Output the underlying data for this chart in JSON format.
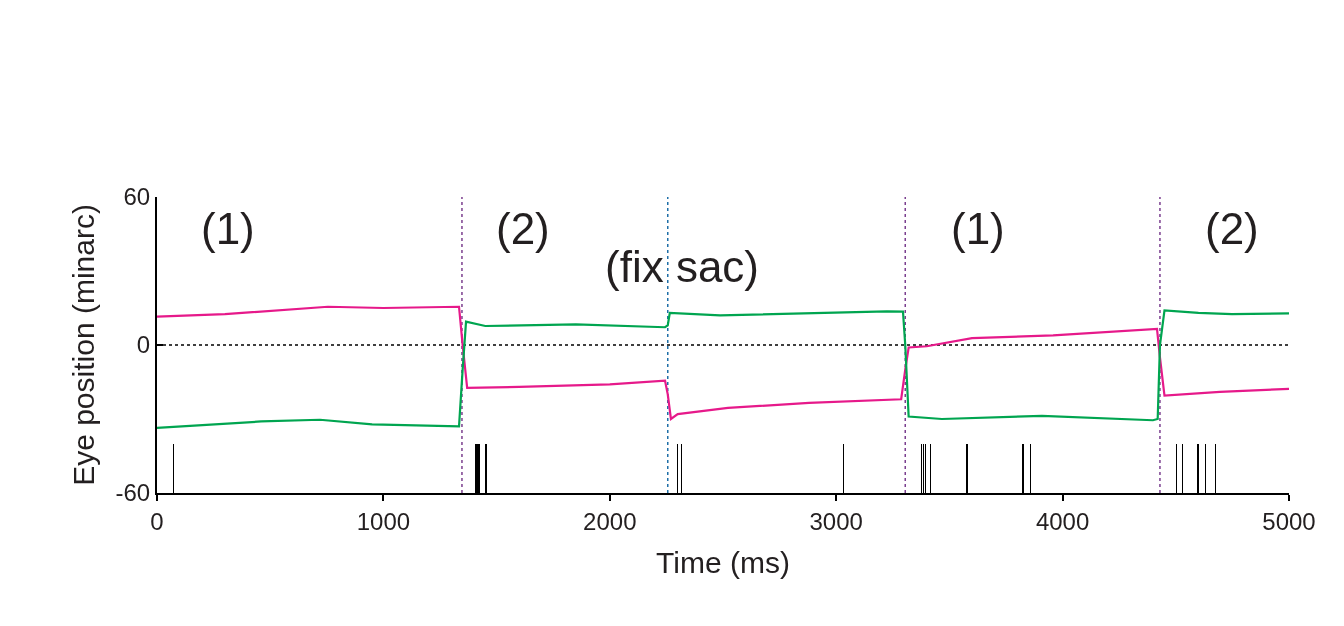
{
  "chart_data": {
    "type": "line",
    "xlabel": "Time (ms)",
    "ylabel": "Eye position (minarc)",
    "xlim": [
      0,
      5000
    ],
    "xticks": [
      0,
      1000,
      2000,
      3000,
      4000,
      5000
    ],
    "ylim": [
      -60,
      60
    ],
    "yticks": [
      60,
      0,
      -60
    ],
    "grid": false,
    "marker": "none",
    "line_style": "solid",
    "series": [
      {
        "color": "#e6198a",
        "x": [
          0,
          300,
          755,
          1000,
          1334,
          1350,
          1370,
          1600,
          2000,
          2244,
          2256,
          2270,
          2300,
          2522,
          2880,
          3287,
          3305,
          3320,
          3400,
          3600,
          3958,
          4417,
          4430,
          4450,
          4695,
          5000
        ],
        "values": [
          11.5,
          12.5,
          15.5,
          15,
          15.5,
          0,
          -17.4,
          -17,
          -16,
          -14.5,
          -20,
          -30,
          -28,
          -25.5,
          -23.5,
          -22,
          -10,
          -1,
          -0.5,
          2.8,
          3.9,
          6.5,
          -5,
          -20.5,
          -19,
          -17.8
        ]
      },
      {
        "color": "#00a550",
        "x": [
          0,
          460,
          720,
          950,
          1334,
          1350,
          1365,
          1450,
          1850,
          2244,
          2256,
          2265,
          2487,
          3224,
          3295,
          3305,
          3320,
          3467,
          3909,
          4399,
          4420,
          4430,
          4450,
          4600,
          4748,
          5000
        ],
        "values": [
          -33.6,
          -31,
          -30.3,
          -32.2,
          -33,
          -10,
          9.5,
          7.7,
          8.4,
          7.2,
          8,
          13,
          12,
          13.6,
          13.5,
          0,
          -29,
          -30,
          -28.7,
          -30.5,
          -30,
          0,
          14,
          13,
          12.5,
          12.8
        ]
      },
      {
        "type": "bar",
        "color": "#000000",
        "x": [
          71,
          1409,
          1415,
          1422,
          1453,
          2299,
          2318,
          3031,
          3375,
          3385,
          3395,
          3417,
          3578,
          3825,
          3858,
          4504,
          4528,
          4598,
          4632,
          4676
        ],
        "values": [
          20,
          20,
          20,
          20,
          20,
          20,
          20,
          20,
          20,
          20,
          20,
          20,
          20,
          20,
          20,
          20,
          20,
          20,
          20,
          20
        ],
        "base": [
          -60,
          -60,
          -60,
          -60,
          -60,
          -60,
          -60,
          -60,
          -60,
          -60,
          -60,
          -60,
          -60,
          -60,
          -60,
          -60,
          -60,
          -60,
          -60,
          -60
        ]
      }
    ],
    "ref_lines": [
      {
        "axis": "y",
        "value": 0,
        "color": "#000000",
        "line_style": "dotted"
      },
      {
        "axis": "x",
        "value": 1347,
        "color": "#7b3f8f",
        "line_style": "dotted"
      },
      {
        "axis": "x",
        "value": 2256,
        "color": "#1f6fa8",
        "line_style": "dotted"
      },
      {
        "axis": "x",
        "value": 3305,
        "color": "#7b3f8f",
        "line_style": "dotted"
      },
      {
        "axis": "x",
        "value": 4430,
        "color": "#7b3f8f",
        "line_style": "dotted"
      }
    ],
    "annotations": [
      "(1)",
      "(2)",
      "(fix sac)",
      "(1)",
      "(2)"
    ]
  }
}
